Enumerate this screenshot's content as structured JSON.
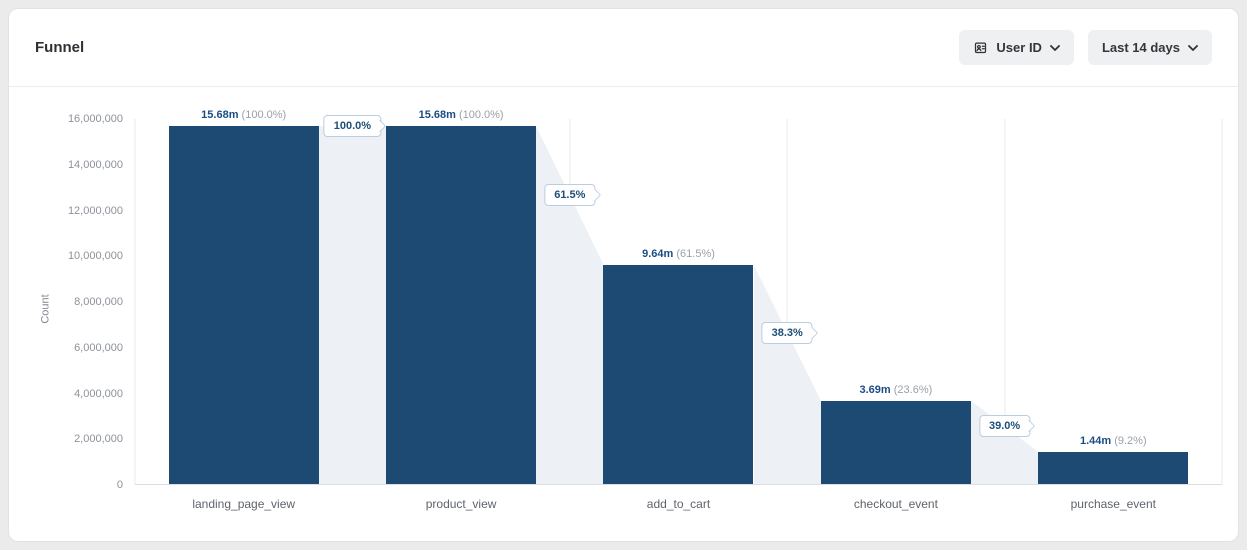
{
  "header": {
    "title": "Funnel",
    "user_id_button": "User ID",
    "date_range_button": "Last 14 days"
  },
  "chart_data": {
    "type": "bar",
    "variant": "funnel",
    "title": "Funnel",
    "xlabel": "",
    "ylabel": "Count",
    "ylim": [
      0,
      16000000
    ],
    "yticks": [
      "16,000,000",
      "14,000,000",
      "12,000,000",
      "10,000,000",
      "8,000,000",
      "6,000,000",
      "4,000,000",
      "2,000,000",
      "0"
    ],
    "categories": [
      "landing_page_view",
      "product_view",
      "add_to_cart",
      "checkout_event",
      "purchase_event"
    ],
    "values": [
      15680000,
      15680000,
      9640000,
      3690000,
      1440000
    ],
    "bar_labels": [
      {
        "value": "15.68m",
        "pct": "(100.0%)"
      },
      {
        "value": "15.68m",
        "pct": "(100.0%)"
      },
      {
        "value": "9.64m",
        "pct": "(61.5%)"
      },
      {
        "value": "3.69m",
        "pct": "(23.6%)"
      },
      {
        "value": "1.44m",
        "pct": "(9.2%)"
      }
    ],
    "step_conversions": [
      "100.0%",
      "61.5%",
      "38.3%",
      "39.0%"
    ],
    "grid": "vertical",
    "legend_position": "none",
    "colors": {
      "bar": "#1c4a72",
      "connector": "#edf0f4",
      "value_text": "#1b4d85",
      "pct_text": "#9aa0a8",
      "badge_text": "#1d4e79",
      "badge_border": "#bccde0"
    }
  }
}
